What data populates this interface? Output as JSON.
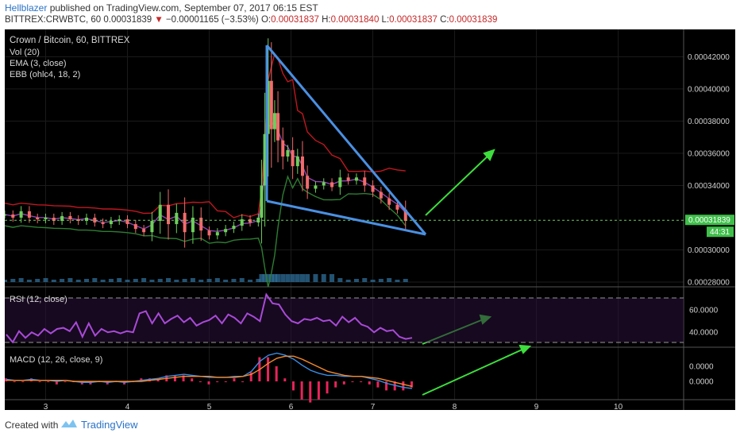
{
  "header": {
    "author": "Hellblazer",
    "published": " published on TradingView.com, September 07, 2017 06:15 EST",
    "symbol": "BITTREX:CRWBTC, 60",
    "price": "0.00031839",
    "change_arrow": "▼",
    "change": "−0.00001165 (−3.53%)",
    "ohlc": {
      "o_label": "O:",
      "o": "0.00031837",
      "h_label": "H:",
      "h": "0.00031840",
      "l_label": "L:",
      "l": "0.00031837",
      "c_label": "C:",
      "c": "0.00031839"
    }
  },
  "legend": {
    "title": "Crown / Bitcoin, 60, BITTREX",
    "vol": "Vol (20)",
    "ema": "EMA (3, close)",
    "ebb": "EBB (ohlc4, 18, 2)",
    "rsi": "RSI (12, close)",
    "macd": "MACD (12, 26, close, 9)"
  },
  "price_tag": {
    "value": "0.00031839",
    "countdown": "44:31"
  },
  "footer": {
    "created": "Created with",
    "brand": "TradingView"
  },
  "colors": {
    "bull": "#6dcf5b",
    "bear": "#f26b6b",
    "ema": "#8e44ad",
    "bb_upper": "#c0171f",
    "bb_lower": "#2e7d32",
    "annotation": "#4a90e2",
    "arrow": "#3dde3d",
    "rsi": "#a94ad9",
    "macd": "#3a8ee6",
    "signal": "#f5892c",
    "hist": "#e8245a"
  },
  "chart_data": [
    {
      "type": "candlestick",
      "title": "Crown / Bitcoin, 60, BITTREX",
      "x_ticks": [
        "3",
        "4",
        "5",
        "6",
        "7",
        "8",
        "9",
        "10"
      ],
      "y_ticks": [
        "0.00042000",
        "0.00040000",
        "0.00038000",
        "0.00036000",
        "0.00034000",
        "0.00030000",
        "0.00028000"
      ],
      "ylim": [
        0.00028,
        0.000435
      ],
      "xlim": [
        2.5,
        10.8
      ],
      "last_price": 0.00031839,
      "close": [
        [
          2.5,
          0.000322
        ],
        [
          2.6,
          0.00032
        ],
        [
          2.7,
          0.000324
        ],
        [
          2.8,
          0.00032
        ],
        [
          2.9,
          0.000319
        ],
        [
          3.0,
          0.00032
        ],
        [
          3.1,
          0.000318
        ],
        [
          3.2,
          0.000321
        ],
        [
          3.3,
          0.000319
        ],
        [
          3.4,
          0.000318
        ],
        [
          3.5,
          0.00032
        ],
        [
          3.6,
          0.000317
        ],
        [
          3.7,
          0.000316
        ],
        [
          3.8,
          0.000318
        ],
        [
          3.9,
          0.000319
        ],
        [
          4.0,
          0.000316
        ],
        [
          4.1,
          0.000313
        ],
        [
          4.2,
          0.000311
        ],
        [
          4.3,
          0.000318
        ],
        [
          4.4,
          0.000328
        ],
        [
          4.5,
          0.000316
        ],
        [
          4.6,
          0.000323
        ],
        [
          4.7,
          0.000311
        ],
        [
          4.8,
          0.00032
        ],
        [
          4.9,
          0.000312
        ],
        [
          5.0,
          0.000309
        ],
        [
          5.1,
          0.000311
        ],
        [
          5.2,
          0.000313
        ],
        [
          5.3,
          0.000315
        ],
        [
          5.4,
          0.000319
        ],
        [
          5.5,
          0.000317
        ],
        [
          5.6,
          0.00032
        ],
        [
          5.64,
          0.00034
        ],
        [
          5.68,
          0.000372
        ],
        [
          5.72,
          0.000405
        ],
        [
          5.76,
          0.000375
        ],
        [
          5.8,
          0.000385
        ],
        [
          5.84,
          0.000368
        ],
        [
          5.9,
          0.000358
        ],
        [
          5.96,
          0.000362
        ],
        [
          6.02,
          0.000352
        ],
        [
          6.08,
          0.000358
        ],
        [
          6.14,
          0.000346
        ],
        [
          6.2,
          0.000338
        ],
        [
          6.3,
          0.00034
        ],
        [
          6.4,
          0.000342
        ],
        [
          6.5,
          0.000339
        ],
        [
          6.6,
          0.000345
        ],
        [
          6.7,
          0.000343
        ],
        [
          6.8,
          0.000345
        ],
        [
          6.9,
          0.00034
        ],
        [
          7.0,
          0.000336
        ],
        [
          7.1,
          0.000332
        ],
        [
          7.2,
          0.000328
        ],
        [
          7.3,
          0.000325
        ],
        [
          7.4,
          0.000318
        ]
      ]
    },
    {
      "type": "line",
      "title": "RSI (12, close)",
      "y_ticks": [
        "60.0000",
        "40.0000"
      ],
      "ylim": [
        28,
        78
      ],
      "bands": [
        70,
        30
      ],
      "values": [
        38,
        31,
        41,
        35,
        40,
        37,
        43,
        39,
        43,
        44,
        41,
        49,
        36,
        48,
        37,
        43,
        40,
        41,
        39,
        41,
        40,
        57,
        59,
        48,
        57,
        48,
        52,
        55,
        49,
        53,
        46,
        49,
        51,
        55,
        48,
        56,
        53,
        48,
        57,
        54,
        50,
        74,
        66,
        65,
        56,
        50,
        48,
        52,
        51,
        53,
        50,
        51,
        46,
        54,
        49,
        53,
        47,
        45,
        40,
        44,
        41,
        42,
        36,
        34,
        35
      ]
    },
    {
      "type": "line",
      "title": "MACD (12, 26, close, 9)",
      "y_ticks": [
        "0.0000",
        "0.0000"
      ],
      "series": [
        {
          "values": [
            0.2,
            0.1,
            0.1,
            0.2,
            0.1,
            0.1,
            0.0,
            0.1,
            0.0,
            -0.1,
            -0.1,
            0.0,
            -0.1,
            0.0,
            -0.1,
            0.0,
            0.1,
            0.2,
            0.3,
            0.5,
            0.6,
            0.7,
            0.6,
            0.5,
            0.4,
            0.4,
            0.4,
            0.5,
            0.5,
            1.0,
            2.0,
            2.6,
            2.8,
            2.6,
            2.2,
            1.6,
            1.1,
            0.8,
            0.6,
            0.6,
            0.5,
            0.5,
            0.5,
            0.3,
            0.1,
            -0.2,
            -0.4,
            -0.6,
            -0.7
          ]
        },
        {
          "values": [
            0.1,
            0.1,
            0.1,
            0.1,
            0.1,
            0.1,
            0.1,
            0.1,
            0.0,
            0.0,
            0.0,
            0.0,
            0.0,
            0.0,
            0.0,
            0.0,
            0.0,
            0.1,
            0.2,
            0.3,
            0.4,
            0.5,
            0.5,
            0.5,
            0.5,
            0.4,
            0.4,
            0.4,
            0.5,
            0.7,
            1.2,
            1.8,
            2.3,
            2.5,
            2.5,
            2.2,
            1.8,
            1.4,
            1.0,
            0.8,
            0.6,
            0.5,
            0.5,
            0.4,
            0.3,
            0.1,
            -0.1,
            -0.3,
            -0.5
          ]
        }
      ]
    }
  ]
}
